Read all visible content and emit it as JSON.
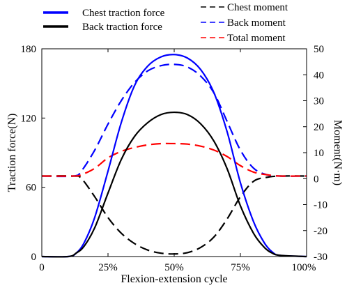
{
  "chart_data": {
    "type": "line",
    "xlabel": "Flexion-extension cycle",
    "ylabel_left": "Traction force(N)",
    "ylabel_right": "Moment(N·m)",
    "x_ticks": [
      "0",
      "25%",
      "50%",
      "75%",
      "100%"
    ],
    "x_range": [
      0,
      100
    ],
    "y_left_ticks": [
      "0",
      "60",
      "120",
      "180"
    ],
    "y_left_range": [
      0,
      180
    ],
    "y_right_ticks": [
      "-30",
      "-20",
      "-10",
      "0",
      "10",
      "20",
      "30",
      "40",
      "50"
    ],
    "y_right_range": [
      -30,
      50
    ],
    "grid": false,
    "legend_left": [
      "Chest traction force",
      "Back traction force"
    ],
    "legend_right": [
      "Chest moment",
      "Back moment",
      "Total moment"
    ],
    "series": [
      {
        "name": "Chest traction force",
        "axis": "left",
        "color": "#0000ff",
        "dash": "solid",
        "x": [
          0,
          10,
          13,
          16,
          20,
          25,
          30,
          35,
          40,
          45,
          50,
          55,
          60,
          65,
          70,
          75,
          80,
          84,
          87,
          90,
          100
        ],
        "y": [
          0,
          0,
          3,
          12,
          34,
          74,
          116,
          148,
          165,
          173,
          175,
          172,
          162,
          142,
          108,
          64,
          30,
          12,
          4,
          1,
          0
        ]
      },
      {
        "name": "Back traction force",
        "axis": "left",
        "color": "#000000",
        "dash": "solid",
        "x": [
          0,
          10,
          13,
          16,
          20,
          25,
          30,
          35,
          40,
          45,
          50,
          55,
          60,
          65,
          70,
          75,
          80,
          84,
          87,
          90,
          100
        ],
        "y": [
          0,
          0,
          3,
          9,
          25,
          55,
          84,
          104,
          116,
          123,
          125,
          123,
          115,
          100,
          76,
          44,
          20,
          8,
          3,
          1,
          0
        ]
      },
      {
        "name": "Chest moment",
        "axis": "right",
        "color": "#000000",
        "dash": "dashed",
        "x": [
          0,
          12,
          15,
          20,
          25,
          30,
          35,
          40,
          45,
          50,
          55,
          60,
          65,
          70,
          75,
          80,
          85,
          90,
          100
        ],
        "y": [
          1,
          1,
          0,
          -7,
          -15,
          -21,
          -25,
          -27.5,
          -28.7,
          -29,
          -28.5,
          -26.5,
          -22.5,
          -15.5,
          -7,
          -1,
          0.5,
          1,
          1
        ]
      },
      {
        "name": "Back moment",
        "axis": "right",
        "color": "#0000ff",
        "dash": "dashed",
        "x": [
          0,
          12,
          15,
          20,
          25,
          30,
          35,
          40,
          45,
          50,
          55,
          60,
          65,
          70,
          75,
          80,
          85,
          90,
          100
        ],
        "y": [
          1,
          1,
          3,
          11,
          21,
          30,
          37,
          41.5,
          43.5,
          44,
          43,
          39.5,
          33,
          22,
          11,
          4,
          1.5,
          1,
          1
        ]
      },
      {
        "name": "Total moment",
        "axis": "right",
        "color": "#ff0000",
        "dash": "dashed",
        "x": [
          0,
          12,
          15,
          20,
          25,
          30,
          35,
          40,
          45,
          50,
          55,
          60,
          65,
          70,
          75,
          80,
          85,
          90,
          100
        ],
        "y": [
          1,
          1,
          1.5,
          4,
          8,
          10.5,
          12,
          13,
          13.5,
          13.5,
          13.3,
          12.5,
          11,
          8.5,
          5,
          2.5,
          1.5,
          1,
          1
        ]
      }
    ]
  }
}
